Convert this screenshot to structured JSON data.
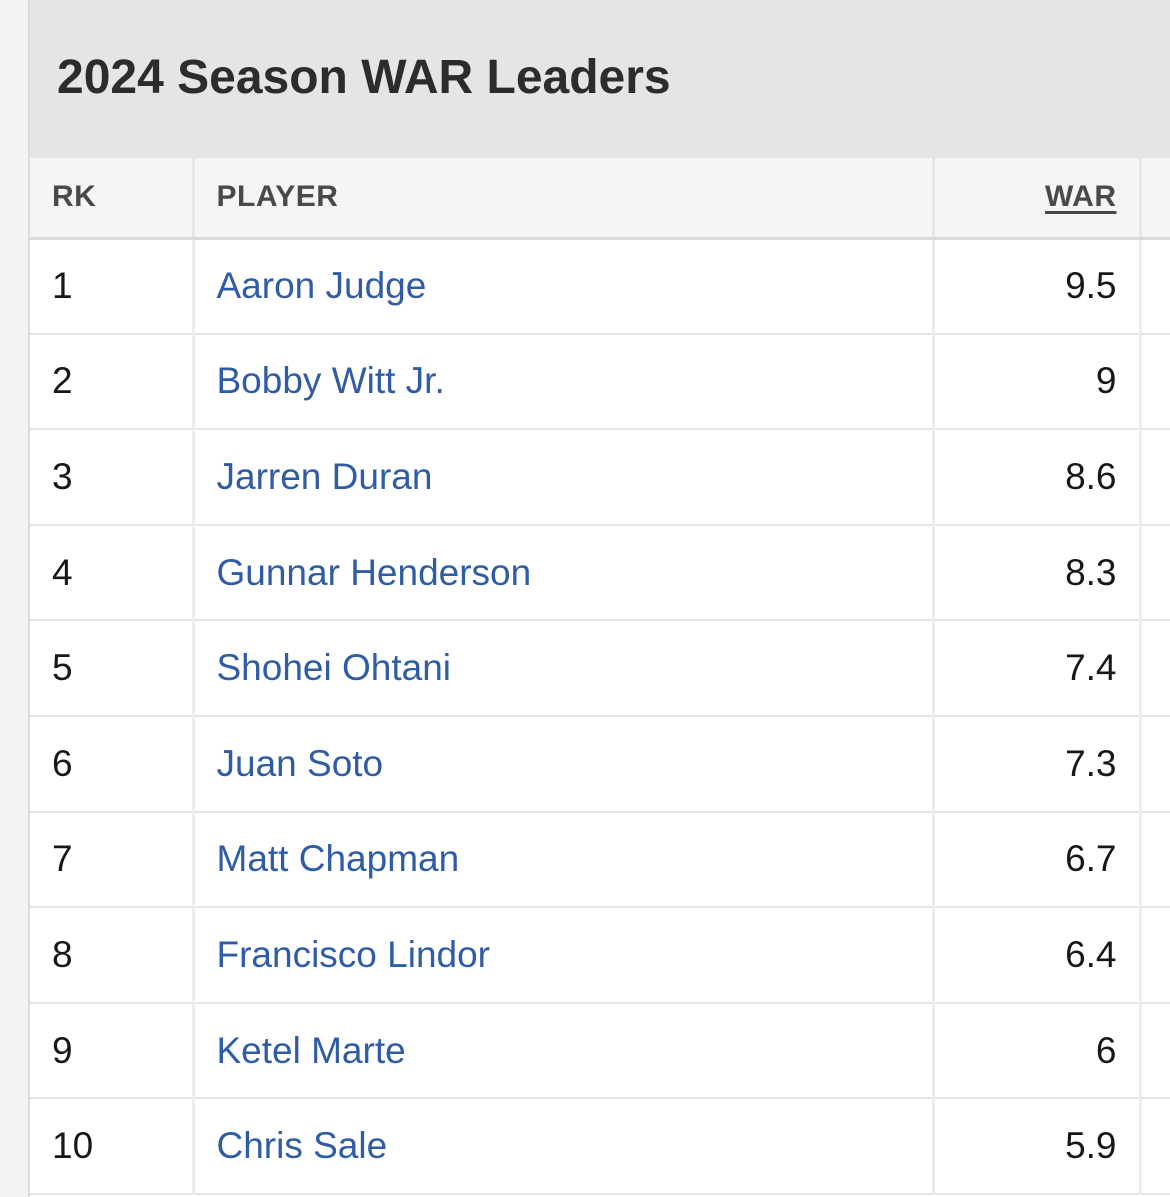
{
  "table": {
    "title": "2024 Season WAR Leaders",
    "columns": {
      "rank": "RK",
      "player": "PLAYER",
      "war": "WAR"
    },
    "rows": [
      {
        "rank": "1",
        "player": "Aaron Judge",
        "war": "9.5"
      },
      {
        "rank": "2",
        "player": "Bobby Witt Jr.",
        "war": "9"
      },
      {
        "rank": "3",
        "player": "Jarren Duran",
        "war": "8.6"
      },
      {
        "rank": "4",
        "player": "Gunnar Henderson",
        "war": "8.3"
      },
      {
        "rank": "5",
        "player": "Shohei Ohtani",
        "war": "7.4"
      },
      {
        "rank": "6",
        "player": "Juan Soto",
        "war": "7.3"
      },
      {
        "rank": "7",
        "player": "Matt Chapman",
        "war": "6.7"
      },
      {
        "rank": "8",
        "player": "Francisco Lindor",
        "war": "6.4"
      },
      {
        "rank": "9",
        "player": "Ketel Marte",
        "war": "6"
      },
      {
        "rank": "10",
        "player": "Chris Sale",
        "war": "5.9"
      }
    ]
  },
  "colors": {
    "header_bg": "#e5e5e6",
    "player_link": "#2f5ca4",
    "text": "#161718"
  }
}
